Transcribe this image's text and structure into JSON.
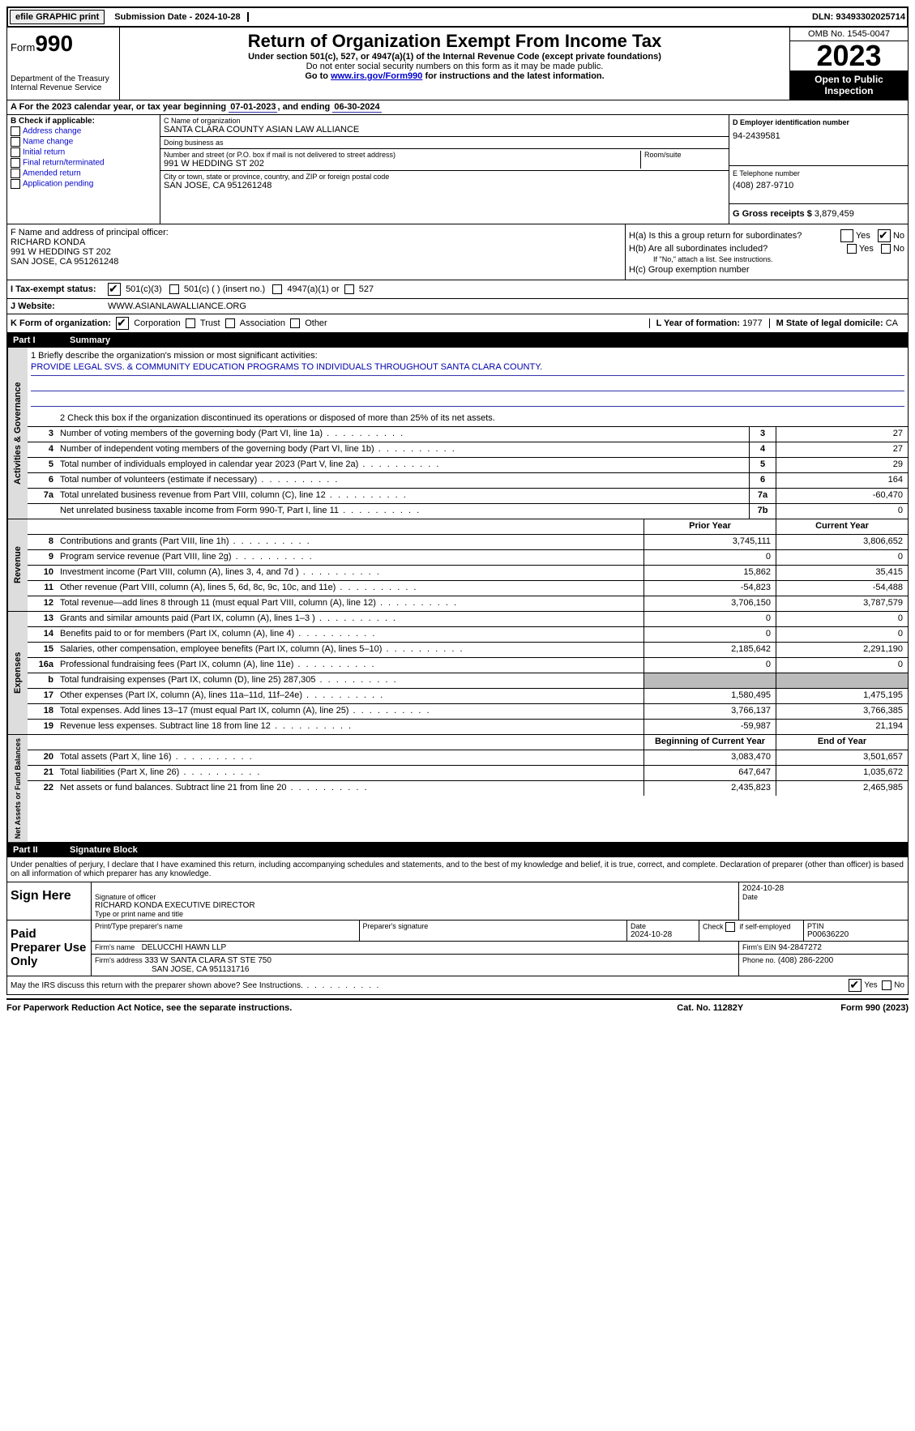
{
  "topbar": {
    "efile": "efile GRAPHIC print",
    "submission": "Submission Date - 2024-10-28",
    "dln_label": "DLN:",
    "dln": "93493302025714"
  },
  "header": {
    "form_label": "Form",
    "form_num": "990",
    "title": "Return of Organization Exempt From Income Tax",
    "subtitle1": "Under section 501(c), 527, or 4947(a)(1) of the Internal Revenue Code (except private foundations)",
    "subtitle2": "Do not enter social security numbers on this form as it may be made public.",
    "subtitle3_pre": "Go to ",
    "subtitle3_link": "www.irs.gov/Form990",
    "subtitle3_post": " for instructions and the latest information.",
    "dept": "Department of the Treasury\nInternal Revenue Service",
    "omb": "OMB No. 1545-0047",
    "year": "2023",
    "open": "Open to Public Inspection"
  },
  "period": {
    "a_label": "A For the 2023 calendar year, or tax year beginning ",
    "begin": "07-01-2023",
    "mid": ", and ending ",
    "end": "06-30-2024"
  },
  "boxB": {
    "label": "B Check if applicable:",
    "opts": [
      "Address change",
      "Name change",
      "Initial return",
      "Final return/terminated",
      "Amended return",
      "Application pending"
    ]
  },
  "boxC": {
    "name_label": "C Name of organization",
    "name": "SANTA CLARA COUNTY ASIAN LAW ALLIANCE",
    "dba_label": "Doing business as",
    "dba": "",
    "street_label": "Number and street (or P.O. box if mail is not delivered to street address)",
    "street": "991 W HEDDING ST 202",
    "room_label": "Room/suite",
    "city_label": "City or town, state or province, country, and ZIP or foreign postal code",
    "city": "SAN JOSE, CA  951261248"
  },
  "boxD": {
    "label": "D Employer identification number",
    "value": "94-2439581"
  },
  "boxE": {
    "label": "E Telephone number",
    "value": "(408) 287-9710"
  },
  "boxG": {
    "label": "G Gross receipts $",
    "value": "3,879,459"
  },
  "boxF": {
    "label": "F  Name and address of principal officer:",
    "name": "RICHARD KONDA",
    "addr1": "991 W HEDDING ST 202",
    "addr2": "SAN JOSE, CA  951261248"
  },
  "boxH": {
    "a": "H(a)  Is this a group return for subordinates?",
    "b": "H(b)  Are all subordinates included?",
    "b_note": "If \"No,\" attach a list. See instructions.",
    "c": "H(c)  Group exemption number"
  },
  "status": {
    "i_label": "I  Tax-exempt status:",
    "opts": [
      "501(c)(3)",
      "501(c) (  ) (insert no.)",
      "4947(a)(1) or",
      "527"
    ]
  },
  "website": {
    "j_label": "J  Website:",
    "value": "WWW.ASIANLAWALLIANCE.ORG"
  },
  "korg": {
    "k_label": "K Form of organization:",
    "opts": [
      "Corporation",
      "Trust",
      "Association",
      "Other"
    ],
    "l_label": "L Year of formation:",
    "l_val": "1977",
    "m_label": "M State of legal domicile:",
    "m_val": "CA"
  },
  "part1": {
    "num": "Part I",
    "title": "Summary"
  },
  "mission": {
    "q": "1  Briefly describe the organization's mission or most significant activities:",
    "text": "PROVIDE LEGAL SVS. & COMMUNITY EDUCATION PROGRAMS TO INDIVIDUALS THROUGHOUT SANTA CLARA COUNTY."
  },
  "line2": "2  Check this box      if the organization discontinued its operations or disposed of more than 25% of its net assets.",
  "lines_gov": [
    {
      "n": "3",
      "d": "Number of voting members of the governing body (Part VI, line 1a)",
      "b": "3",
      "v": "27"
    },
    {
      "n": "4",
      "d": "Number of independent voting members of the governing body (Part VI, line 1b)",
      "b": "4",
      "v": "27"
    },
    {
      "n": "5",
      "d": "Total number of individuals employed in calendar year 2023 (Part V, line 2a)",
      "b": "5",
      "v": "29"
    },
    {
      "n": "6",
      "d": "Total number of volunteers (estimate if necessary)",
      "b": "6",
      "v": "164"
    },
    {
      "n": "7a",
      "d": "Total unrelated business revenue from Part VIII, column (C), line 12",
      "b": "7a",
      "v": "-60,470"
    },
    {
      "n": "",
      "d": "Net unrelated business taxable income from Form 990-T, Part I, line 11",
      "b": "7b",
      "v": "0"
    }
  ],
  "rev_hdr": {
    "py": "Prior Year",
    "cy": "Current Year"
  },
  "lines_rev": [
    {
      "n": "8",
      "d": "Contributions and grants (Part VIII, line 1h)",
      "py": "3,745,111",
      "cy": "3,806,652"
    },
    {
      "n": "9",
      "d": "Program service revenue (Part VIII, line 2g)",
      "py": "0",
      "cy": "0"
    },
    {
      "n": "10",
      "d": "Investment income (Part VIII, column (A), lines 3, 4, and 7d )",
      "py": "15,862",
      "cy": "35,415"
    },
    {
      "n": "11",
      "d": "Other revenue (Part VIII, column (A), lines 5, 6d, 8c, 9c, 10c, and 11e)",
      "py": "-54,823",
      "cy": "-54,488"
    },
    {
      "n": "12",
      "d": "Total revenue—add lines 8 through 11 (must equal Part VIII, column (A), line 12)",
      "py": "3,706,150",
      "cy": "3,787,579"
    }
  ],
  "lines_exp": [
    {
      "n": "13",
      "d": "Grants and similar amounts paid (Part IX, column (A), lines 1–3 )",
      "py": "0",
      "cy": "0"
    },
    {
      "n": "14",
      "d": "Benefits paid to or for members (Part IX, column (A), line 4)",
      "py": "0",
      "cy": "0"
    },
    {
      "n": "15",
      "d": "Salaries, other compensation, employee benefits (Part IX, column (A), lines 5–10)",
      "py": "2,185,642",
      "cy": "2,291,190"
    },
    {
      "n": "16a",
      "d": "Professional fundraising fees (Part IX, column (A), line 11e)",
      "py": "0",
      "cy": "0"
    },
    {
      "n": "b",
      "d": "Total fundraising expenses (Part IX, column (D), line 25) 287,305",
      "py": "",
      "cy": "",
      "grey": true
    },
    {
      "n": "17",
      "d": "Other expenses (Part IX, column (A), lines 11a–11d, 11f–24e)",
      "py": "1,580,495",
      "cy": "1,475,195"
    },
    {
      "n": "18",
      "d": "Total expenses. Add lines 13–17 (must equal Part IX, column (A), line 25)",
      "py": "3,766,137",
      "cy": "3,766,385"
    },
    {
      "n": "19",
      "d": "Revenue less expenses. Subtract line 18 from line 12",
      "py": "-59,987",
      "cy": "21,194"
    }
  ],
  "net_hdr": {
    "py": "Beginning of Current Year",
    "cy": "End of Year"
  },
  "lines_net": [
    {
      "n": "20",
      "d": "Total assets (Part X, line 16)",
      "py": "3,083,470",
      "cy": "3,501,657"
    },
    {
      "n": "21",
      "d": "Total liabilities (Part X, line 26)",
      "py": "647,647",
      "cy": "1,035,672"
    },
    {
      "n": "22",
      "d": "Net assets or fund balances. Subtract line 21 from line 20",
      "py": "2,435,823",
      "cy": "2,465,985"
    }
  ],
  "side_labels": {
    "gov": "Activities & Governance",
    "rev": "Revenue",
    "exp": "Expenses",
    "net": "Net Assets or Fund Balances"
  },
  "part2": {
    "num": "Part II",
    "title": "Signature Block"
  },
  "declaration": "Under penalties of perjury, I declare that I have examined this return, including accompanying schedules and statements, and to the best of my knowledge and belief, it is true, correct, and complete. Declaration of preparer (other than officer) is based on all information of which preparer has any knowledge.",
  "sign": {
    "left": "Sign Here",
    "sig_label": "Signature of officer",
    "date_label": "Date",
    "date": "2024-10-28",
    "name": "RICHARD KONDA  EXECUTIVE DIRECTOR",
    "name_label": "Type or print name and title"
  },
  "preparer": {
    "left": "Paid Preparer Use Only",
    "h1": "Print/Type preparer's name",
    "h2": "Preparer's signature",
    "h3": "Date",
    "date": "2024-10-28",
    "h4": "Check        if self-employed",
    "h5": "PTIN",
    "ptin": "P00636220",
    "firm_label": "Firm's name",
    "firm": "DELUCCHI HAWN LLP",
    "ein_label": "Firm's EIN",
    "ein": "94-2847272",
    "addr_label": "Firm's address",
    "addr1": "333 W SANTA CLARA ST STE 750",
    "addr2": "SAN JOSE, CA  951131716",
    "phone_label": "Phone no.",
    "phone": "(408) 286-2200"
  },
  "discuss": "May the IRS discuss this return with the preparer shown above? See Instructions.",
  "footer": {
    "f1": "For Paperwork Reduction Act Notice, see the separate instructions.",
    "f2": "Cat. No. 11282Y",
    "f3": "Form 990 (2023)"
  }
}
